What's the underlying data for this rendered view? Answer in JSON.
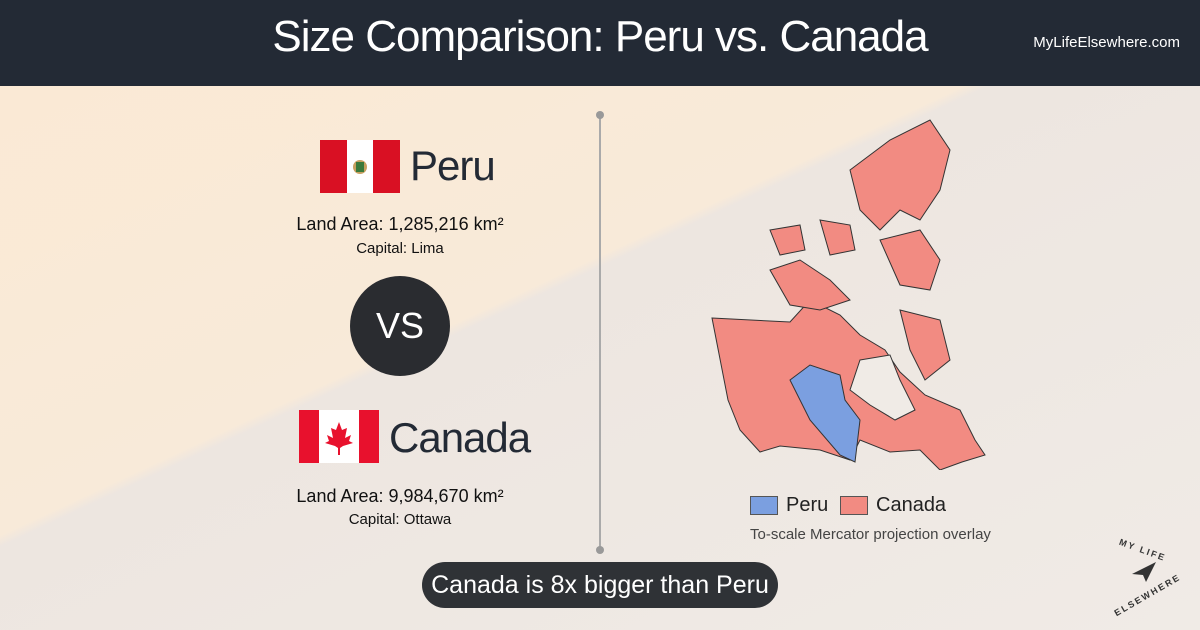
{
  "header": {
    "title": "Size Comparison: Peru vs. Canada",
    "site": "MyLifeElsewhere.com"
  },
  "countries": [
    {
      "name": "Peru",
      "land_area": "Land Area: 1,285,216 km²",
      "capital": "Capital: Lima"
    },
    {
      "name": "Canada",
      "land_area": "Land Area: 9,984,670 km²",
      "capital": "Capital: Ottawa"
    }
  ],
  "vs": "VS",
  "legend": [
    "Peru",
    "Canada"
  ],
  "note": "To-scale Mercator projection overlay",
  "banner": "Canada is 8x bigger than Peru",
  "logo": {
    "line1": "MY LIFE",
    "line2": "ELSEWHERE"
  }
}
